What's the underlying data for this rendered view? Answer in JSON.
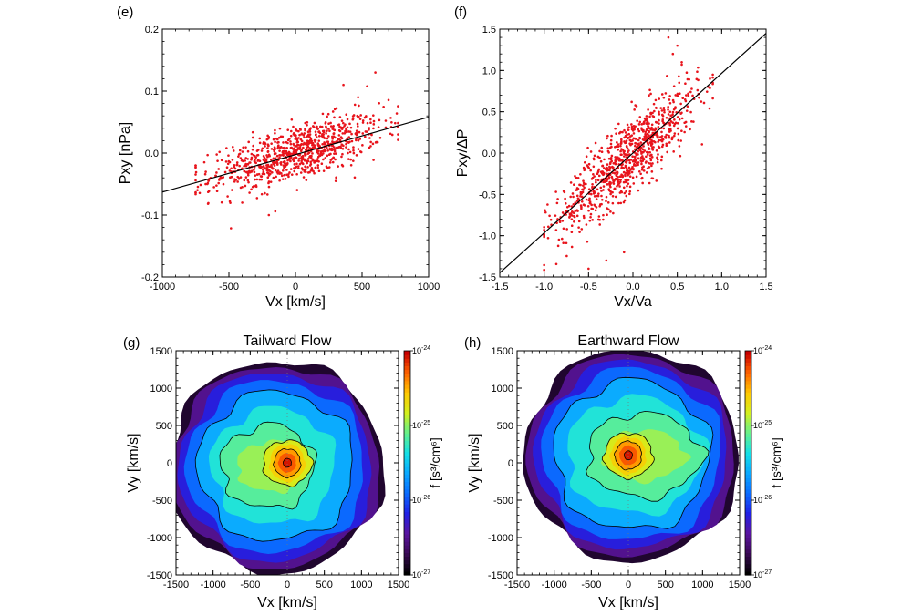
{
  "chart_data": [
    {
      "type": "scatter",
      "panel_label": "(e)",
      "xlabel": "Vx [km/s]",
      "ylabel": "Pxy [nPa]",
      "xlim": [
        -1000,
        1000
      ],
      "ylim": [
        -0.2,
        0.2
      ],
      "xticks": [
        "-1000",
        "-500",
        "0",
        "500",
        "1000"
      ],
      "yticks": [
        "0.2",
        "0.1",
        "0.0",
        "-0.1",
        "-0.2"
      ],
      "point_color": "#e8141c",
      "point_count_estimate": 900,
      "point_model": {
        "slope": 6e-05,
        "intercept": 0.0,
        "scatter_std": 0.022,
        "x_range": [
          -750,
          770
        ]
      },
      "outliers": [
        [
          600,
          0.13
        ],
        [
          360,
          0.11
        ],
        [
          470,
          0.09
        ],
        [
          -400,
          -0.08
        ],
        [
          -200,
          -0.1
        ]
      ],
      "fit_line": {
        "x": [
          -1000,
          1000
        ],
        "y": [
          -0.063,
          0.058
        ],
        "color": "#000000"
      }
    },
    {
      "type": "scatter",
      "panel_label": "(f)",
      "xlabel": "Vx/Va",
      "ylabel": "Pxy/ΔP",
      "xlim": [
        -1.5,
        1.5
      ],
      "ylim": [
        -1.5,
        1.5
      ],
      "xticks": [
        "-1.5",
        "-1.0",
        "-0.5",
        "0.0",
        "0.5",
        "1.0",
        "1.5"
      ],
      "yticks": [
        "1.5",
        "1.0",
        "0.5",
        "0.0",
        "-0.5",
        "-1.0",
        "-1.5"
      ],
      "point_color": "#e8141c",
      "point_count_estimate": 900,
      "point_model": {
        "slope": 0.95,
        "intercept": 0.0,
        "scatter_std": 0.22,
        "x_range": [
          -1.0,
          0.9
        ]
      },
      "outliers": [
        [
          0.4,
          1.4
        ],
        [
          0.5,
          1.3
        ],
        [
          0.45,
          1.2
        ],
        [
          0.55,
          1.1
        ],
        [
          -0.3,
          -1.3
        ],
        [
          -0.5,
          -1.4
        ],
        [
          -0.1,
          -1.2
        ]
      ],
      "fit_line": {
        "x": [
          -1.5,
          1.5
        ],
        "y": [
          -1.45,
          1.45
        ],
        "color": "#000000"
      }
    },
    {
      "type": "heatmap",
      "panel_label": "(g)",
      "title": "Tailward Flow",
      "xlabel": "Vx [km/s]",
      "ylabel": "Vy [km/s]",
      "xlim": [
        -1500,
        1500
      ],
      "ylim": [
        -1500,
        1500
      ],
      "xticks": [
        "-1500",
        "-1000",
        "-500",
        "0",
        "500",
        "1000",
        "1500"
      ],
      "yticks": [
        "1500",
        "1000",
        "500",
        "0",
        "-500",
        "-1000",
        "-1500"
      ],
      "colorbar": {
        "label": "f [s³/cm⁶]",
        "ticks": [
          {
            "base": "10",
            "exp": "-24"
          },
          {
            "base": "10",
            "exp": "-25"
          },
          {
            "base": "10",
            "exp": "-26"
          },
          {
            "base": "10",
            "exp": "-27"
          }
        ],
        "log_range": [
          -27,
          -24
        ],
        "colors": [
          "#000000",
          "#3a0a55",
          "#5a14a0",
          "#2020e6",
          "#0a6cff",
          "#0aa8ff",
          "#14e0e6",
          "#64f08c",
          "#d2f01e",
          "#ffc800",
          "#ff6400",
          "#c80000"
        ]
      },
      "peak": {
        "vx": 0,
        "vy": 0
      }
    },
    {
      "type": "heatmap",
      "panel_label": "(h)",
      "title": "Earthward Flow",
      "xlabel": "Vx [km/s]",
      "ylabel": "Vy [km/s]",
      "xlim": [
        -1500,
        1500
      ],
      "ylim": [
        -1500,
        1500
      ],
      "xticks": [
        "-1500",
        "-1000",
        "-500",
        "0",
        "500",
        "1000",
        "1500"
      ],
      "yticks": [
        "1500",
        "1000",
        "500",
        "0",
        "-500",
        "-1000",
        "-1500"
      ],
      "colorbar": {
        "label": "f [s³/cm⁶]",
        "ticks": [
          {
            "base": "10",
            "exp": "-24"
          },
          {
            "base": "10",
            "exp": "-25"
          },
          {
            "base": "10",
            "exp": "-26"
          },
          {
            "base": "10",
            "exp": "-27"
          }
        ],
        "log_range": [
          -27,
          -24
        ],
        "colors": [
          "#000000",
          "#3a0a55",
          "#5a14a0",
          "#2020e6",
          "#0a6cff",
          "#0aa8ff",
          "#14e0e6",
          "#64f08c",
          "#d2f01e",
          "#ffc800",
          "#ff6400",
          "#c80000"
        ]
      },
      "peak": {
        "vx": 0,
        "vy": 100
      }
    }
  ]
}
